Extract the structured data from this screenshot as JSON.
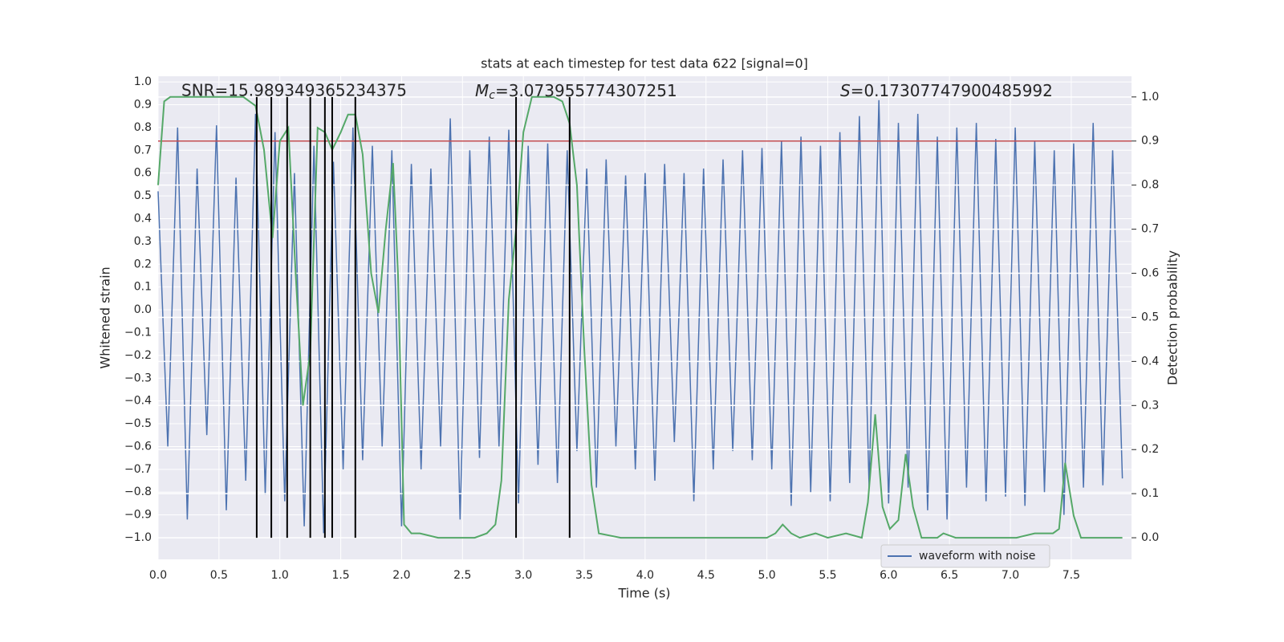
{
  "chart_data": {
    "type": "line",
    "title": "stats at each timestep for test data 622 [signal=0]",
    "xlabel": "Time (s)",
    "ylabel": "Whitened strain",
    "y2label": "Detection probability",
    "xlim": [
      0,
      7.995
    ],
    "ylim": [
      -1.095,
      1.025
    ],
    "y2lim": [
      -0.049,
      1.047
    ],
    "grid": true,
    "legend": "lower right",
    "xticks": [
      {
        "value": 0,
        "label": "0.0"
      },
      {
        "value": 0.5,
        "label": "0.5"
      },
      {
        "value": 1,
        "label": "1.0"
      },
      {
        "value": 1.5,
        "label": "1.5"
      },
      {
        "value": 2,
        "label": "2.0"
      },
      {
        "value": 2.5,
        "label": "2.5"
      },
      {
        "value": 3,
        "label": "3.0"
      },
      {
        "value": 3.5,
        "label": "3.5"
      },
      {
        "value": 4,
        "label": "4.0"
      },
      {
        "value": 4.5,
        "label": "4.5"
      },
      {
        "value": 5,
        "label": "5.0"
      },
      {
        "value": 5.5,
        "label": "5.5"
      },
      {
        "value": 6,
        "label": "6.0"
      },
      {
        "value": 6.5,
        "label": "6.5"
      },
      {
        "value": 7,
        "label": "7.0"
      },
      {
        "value": 7.5,
        "label": "7.5"
      }
    ],
    "yticks": [
      {
        "value": -1,
        "label": "−1.0"
      },
      {
        "value": -0.9,
        "label": "−0.9"
      },
      {
        "value": -0.8,
        "label": "−0.8"
      },
      {
        "value": -0.7,
        "label": "−0.7"
      },
      {
        "value": -0.6,
        "label": "−0.6"
      },
      {
        "value": -0.5,
        "label": "−0.5"
      },
      {
        "value": -0.4,
        "label": "−0.4"
      },
      {
        "value": -0.3,
        "label": "−0.3"
      },
      {
        "value": -0.2,
        "label": "−0.2"
      },
      {
        "value": -0.1,
        "label": "−0.1"
      },
      {
        "value": 0,
        "label": "0.0"
      },
      {
        "value": 0.1,
        "label": "0.1"
      },
      {
        "value": 0.2,
        "label": "0.2"
      },
      {
        "value": 0.3,
        "label": "0.3"
      },
      {
        "value": 0.4,
        "label": "0.4"
      },
      {
        "value": 0.5,
        "label": "0.5"
      },
      {
        "value": 0.6,
        "label": "0.6"
      },
      {
        "value": 0.7,
        "label": "0.7"
      },
      {
        "value": 0.8,
        "label": "0.8"
      },
      {
        "value": 0.9,
        "label": "0.9"
      },
      {
        "value": 1,
        "label": "1.0"
      }
    ],
    "y2ticks": [
      {
        "value": 0,
        "label": "0.0"
      },
      {
        "value": 0.1,
        "label": "0.1"
      },
      {
        "value": 0.2,
        "label": "0.2"
      },
      {
        "value": 0.3,
        "label": "0.3"
      },
      {
        "value": 0.4,
        "label": "0.4"
      },
      {
        "value": 0.5,
        "label": "0.5"
      },
      {
        "value": 0.6,
        "label": "0.6"
      },
      {
        "value": 0.7,
        "label": "0.7"
      },
      {
        "value": 0.8,
        "label": "0.8"
      },
      {
        "value": 0.9,
        "label": "0.9"
      },
      {
        "value": 1,
        "label": "1.0"
      }
    ],
    "series": [
      {
        "name": "waveform with noise",
        "color": "#4c72b0",
        "x": [
          0,
          0.08,
          0.16,
          0.24,
          0.32,
          0.4,
          0.48,
          0.56,
          0.64,
          0.72,
          0.8,
          0.88,
          0.96,
          1.04,
          1.12,
          1.2,
          1.28,
          1.36,
          1.44,
          1.52,
          1.6,
          1.68,
          1.76,
          1.84,
          1.92,
          2,
          2.08,
          2.16,
          2.24,
          2.32,
          2.4,
          2.48,
          2.56,
          2.64,
          2.72,
          2.8,
          2.88,
          2.96,
          3.04,
          3.12,
          3.2,
          3.28,
          3.36,
          3.44,
          3.52,
          3.6,
          3.68,
          3.76,
          3.84,
          3.92,
          4,
          4.08,
          4.16,
          4.24,
          4.32,
          4.4,
          4.48,
          4.56,
          4.64,
          4.72,
          4.8,
          4.88,
          4.96,
          5.04,
          5.12,
          5.2,
          5.28,
          5.36,
          5.44,
          5.52,
          5.6,
          5.68,
          5.76,
          5.84,
          5.92,
          6,
          6.08,
          6.16,
          6.24,
          6.32,
          6.4,
          6.48,
          6.56,
          6.64,
          6.72,
          6.8,
          6.88,
          6.96,
          7.04,
          7.12,
          7.2,
          7.28,
          7.36,
          7.44,
          7.52,
          7.6,
          7.68,
          7.76,
          7.84,
          7.92
        ],
        "values": [
          0.52,
          -0.6,
          0.8,
          -0.92,
          0.62,
          -0.55,
          0.81,
          -0.88,
          0.58,
          -0.75,
          0.86,
          -0.81,
          0.78,
          -0.84,
          0.6,
          -0.95,
          0.72,
          -0.98,
          0.65,
          -0.7,
          0.8,
          -0.66,
          0.72,
          -0.6,
          0.7,
          -0.95,
          0.64,
          -0.7,
          0.62,
          -0.6,
          0.84,
          -0.92,
          0.7,
          -0.65,
          0.76,
          -0.6,
          0.79,
          -0.85,
          0.72,
          -0.68,
          0.73,
          -0.76,
          0.7,
          -0.62,
          0.62,
          -0.78,
          0.66,
          -0.6,
          0.59,
          -0.7,
          0.6,
          -0.75,
          0.64,
          -0.58,
          0.6,
          -0.84,
          0.62,
          -0.7,
          0.66,
          -0.62,
          0.7,
          -0.66,
          0.71,
          -0.7,
          0.74,
          -0.86,
          0.76,
          -0.8,
          0.72,
          -0.84,
          0.78,
          -0.76,
          0.85,
          -0.78,
          0.92,
          -0.85,
          0.82,
          -0.78,
          0.86,
          -0.88,
          0.76,
          -0.92,
          0.8,
          -0.78,
          0.82,
          -0.84,
          0.75,
          -0.82,
          0.8,
          -0.86,
          0.74,
          -0.8,
          0.7,
          -0.9,
          0.73,
          -0.78,
          0.82,
          -0.77,
          0.7,
          -0.74
        ]
      }
    ],
    "detection": {
      "color": "#55a868",
      "axis": "y2",
      "x": [
        0,
        0.05,
        0.1,
        0.3,
        0.5,
        0.7,
        0.8,
        0.87,
        0.94,
        1,
        1.07,
        1.13,
        1.19,
        1.25,
        1.31,
        1.37,
        1.43,
        1.5,
        1.56,
        1.62,
        1.68,
        1.75,
        1.81,
        1.87,
        1.93,
        1.97,
        2.02,
        2.08,
        2.15,
        2.3,
        2.45,
        2.6,
        2.7,
        2.77,
        2.82,
        2.88,
        2.94,
        3,
        3.07,
        3.15,
        3.25,
        3.32,
        3.38,
        3.44,
        3.5,
        3.56,
        3.62,
        3.8,
        4.2,
        4.6,
        4.8,
        5,
        5.07,
        5.13,
        5.2,
        5.27,
        5.4,
        5.5,
        5.65,
        5.78,
        5.83,
        5.89,
        5.95,
        6.01,
        6.08,
        6.14,
        6.2,
        6.27,
        6.4,
        6.45,
        6.55,
        6.75,
        7.05,
        7.2,
        7.35,
        7.4,
        7.45,
        7.52,
        7.58,
        7.7,
        7.8,
        7.92
      ],
      "values": [
        0.8,
        0.99,
        1,
        1,
        1,
        1,
        0.98,
        0.88,
        0.68,
        0.9,
        0.93,
        0.6,
        0.3,
        0.42,
        0.93,
        0.92,
        0.88,
        0.92,
        0.96,
        0.96,
        0.87,
        0.6,
        0.51,
        0.7,
        0.85,
        0.6,
        0.03,
        0.01,
        0.01,
        0,
        0,
        0,
        0.01,
        0.03,
        0.13,
        0.54,
        0.7,
        0.92,
        1,
        1,
        1,
        0.99,
        0.94,
        0.8,
        0.43,
        0.12,
        0.01,
        0,
        0,
        0,
        0,
        0,
        0.01,
        0.03,
        0.01,
        0,
        0.01,
        0,
        0.01,
        0,
        0.08,
        0.28,
        0.07,
        0.02,
        0.04,
        0.19,
        0.07,
        0,
        0,
        0.01,
        0,
        0,
        0,
        0.01,
        0.01,
        0.02,
        0.17,
        0.05,
        0,
        0,
        0,
        0
      ]
    },
    "threshold": {
      "value": 0.9,
      "axis": "y2",
      "color": "#c44e52"
    },
    "vlines": {
      "x": [
        0.81,
        0.93,
        1.06,
        1.25,
        1.37,
        1.43,
        1.62,
        2.94,
        3.38
      ],
      "y2range": [
        0,
        1
      ],
      "color": "#000000"
    },
    "annotations": {
      "snr": "SNR=15.989349365234375",
      "mc": {
        "symbol": "M",
        "subscript": "c",
        "text": "=3.073955774307251"
      },
      "s": {
        "symbol": "S",
        "text": "=0.17307747900485992"
      }
    }
  }
}
